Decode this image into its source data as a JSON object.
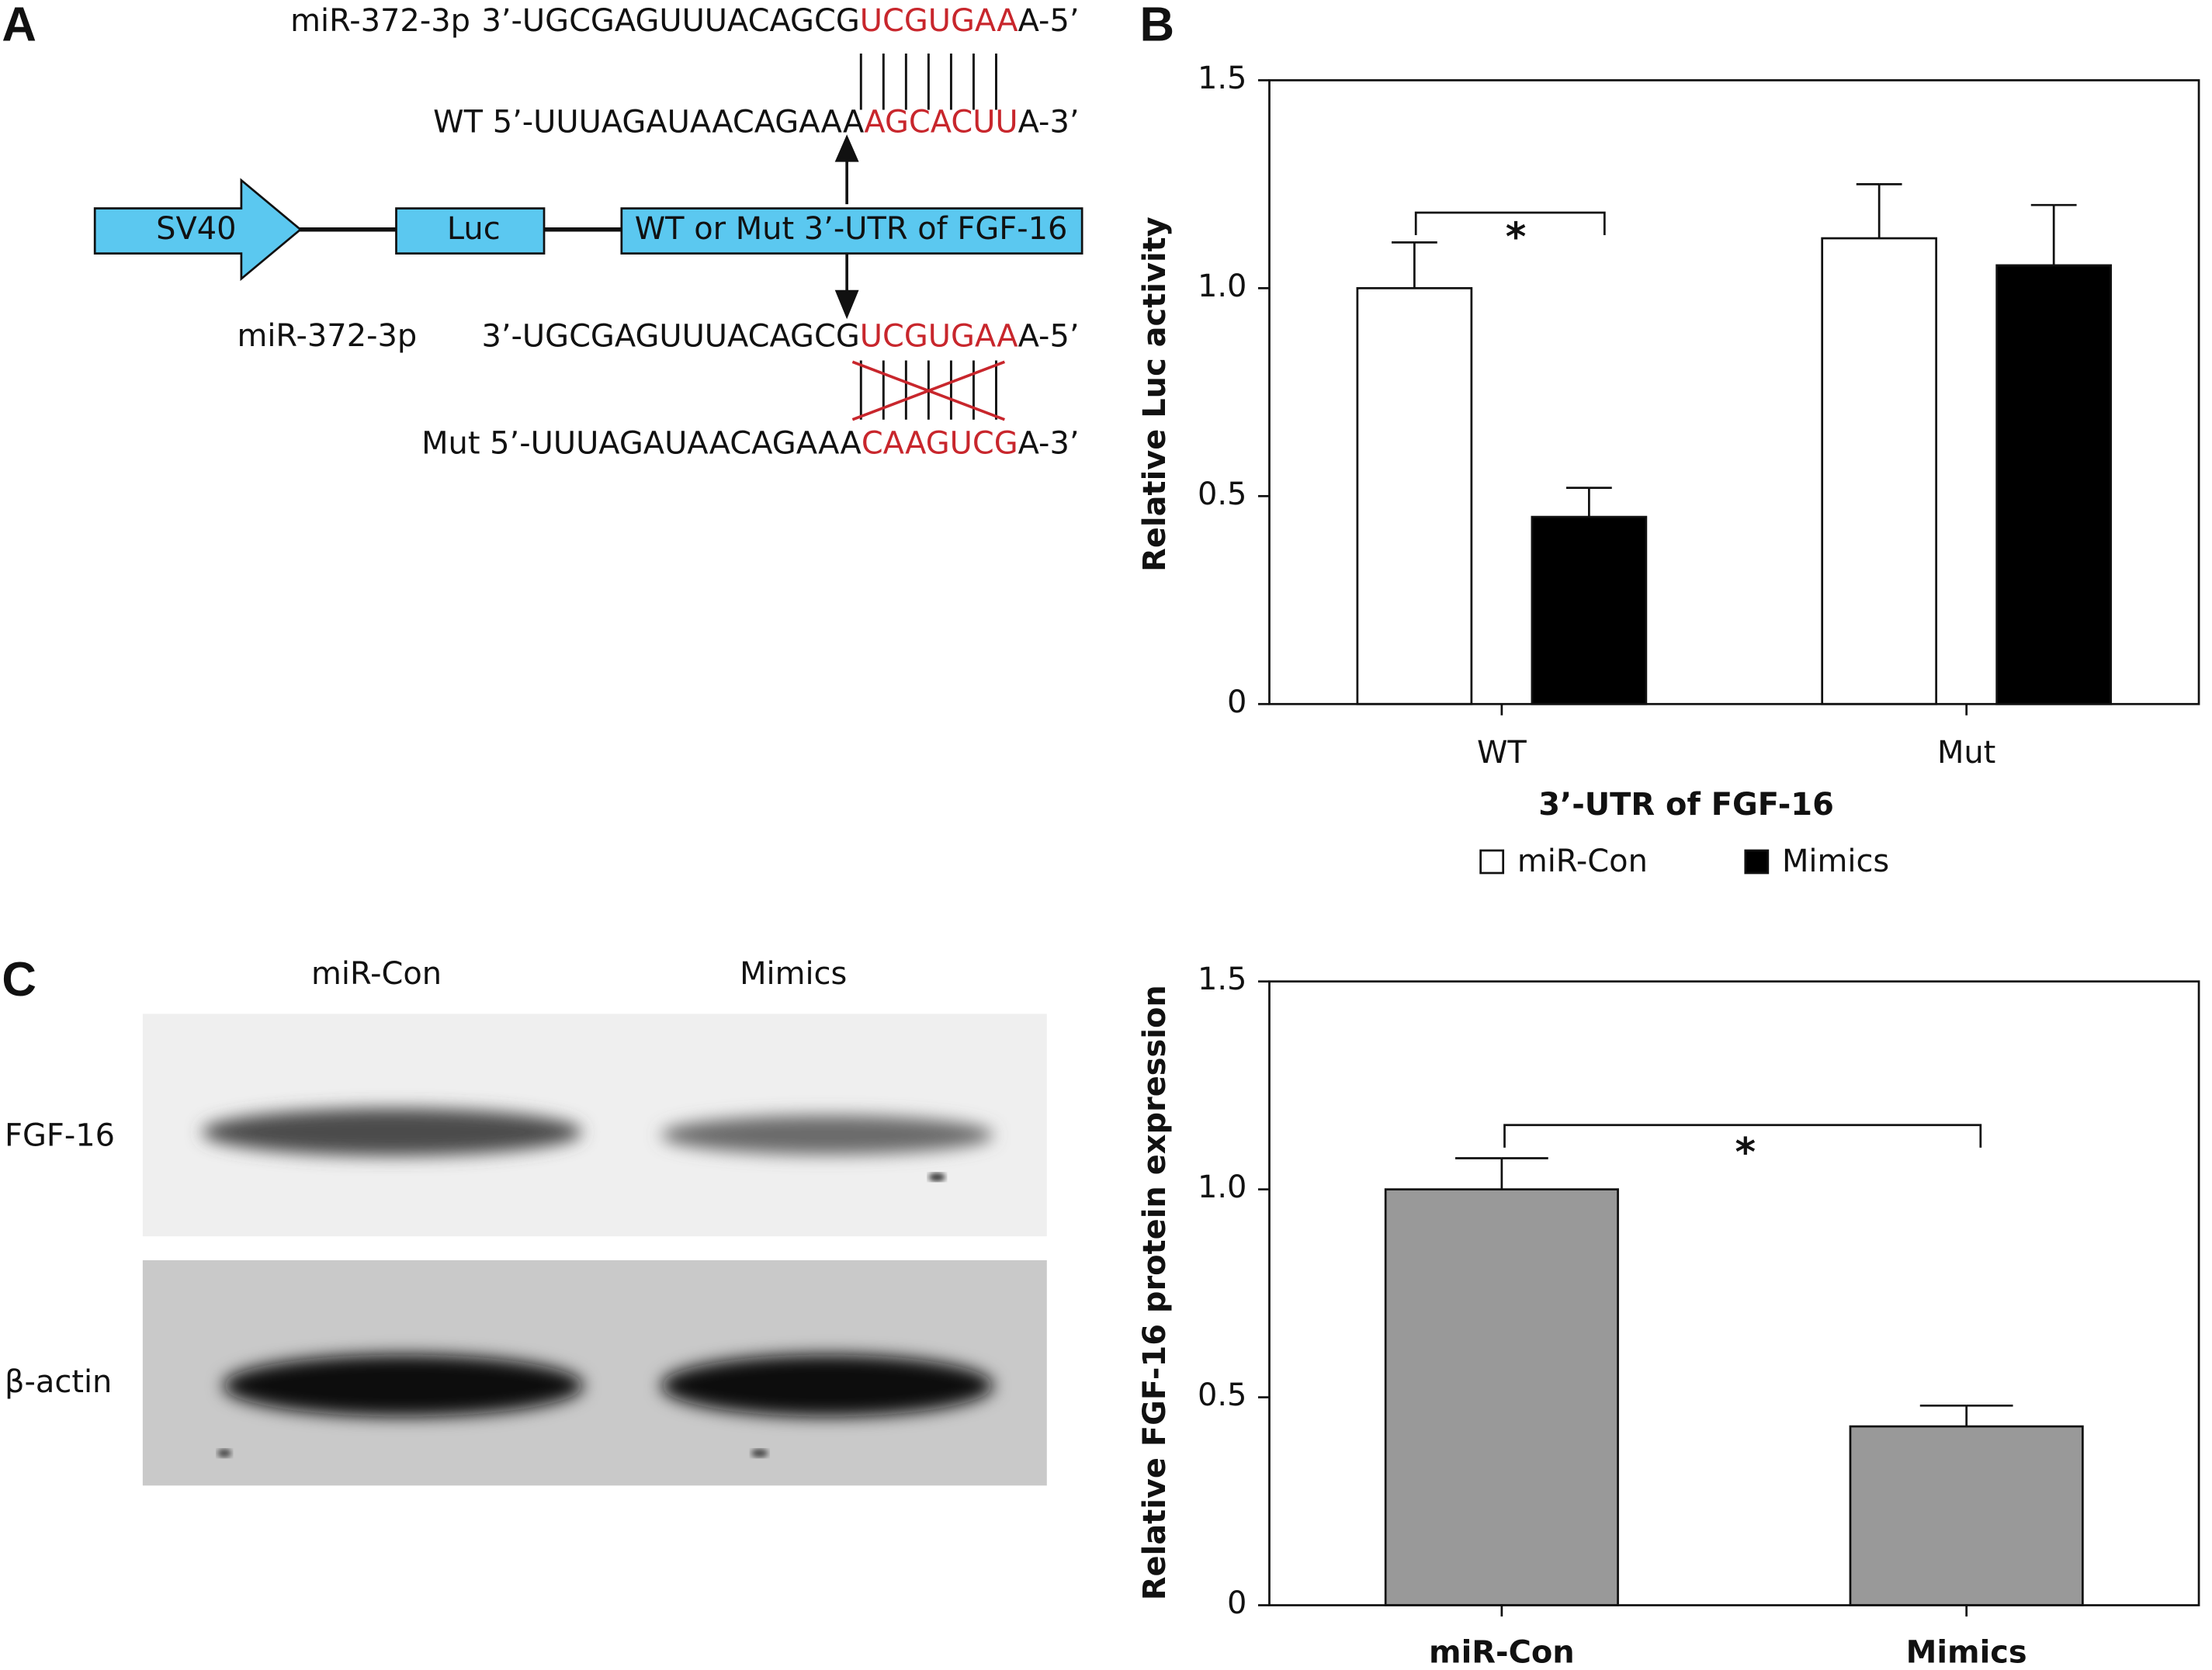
{
  "panels": {
    "a": "A",
    "b": "B",
    "c": "C"
  },
  "diagram": {
    "top_mirna": {
      "label": "miR-372-3p",
      "prefix": "3’-UGCGAGUUUACAGCG",
      "site": "UCGUGAA",
      "suffix": "A-5’"
    },
    "wt_utr": {
      "prefix": "WT 5’-UUUAGAUAACAGAAA",
      "site": "AGCACUU",
      "suffix": "A-3’"
    },
    "construct": {
      "promoter": "SV40",
      "reporter": "Luc",
      "utr": "WT or Mut 3’-UTR of FGF-16"
    },
    "bottom_mirna": {
      "label": "miR-372-3p",
      "prefix": "3’-UGCGAGUUUACAGCG",
      "site": "UCGUGAA",
      "suffix": "A-5’"
    },
    "mut_utr": {
      "prefix": "Mut 5’-UUUAGAUAACAGAAA",
      "site": "CAAGUCG",
      "suffix": "A-3’"
    }
  },
  "blot": {
    "lanes": [
      "miR-Con",
      "Mimics"
    ],
    "rows": [
      "FGF-16",
      "β-actin"
    ]
  },
  "chart_data": [
    {
      "type": "bar",
      "y_label": "Relative Luc activity",
      "x_label": "3’-UTR of FGF-16",
      "categories": [
        "WT",
        "Mut"
      ],
      "series": [
        {
          "name": "miR-Con",
          "color": "#ffffff",
          "values": [
            1.0,
            1.12
          ],
          "errors": [
            0.11,
            0.13
          ]
        },
        {
          "name": "Mimics",
          "color": "#000000",
          "values": [
            0.45,
            1.055
          ],
          "errors": [
            0.07,
            0.145
          ]
        }
      ],
      "ylim": [
        0,
        1.5
      ],
      "yticks": [
        0,
        0.5,
        {
          "value": 1,
          "label": "1.0"
        },
        1.5
      ],
      "annotations": [
        "*"
      ],
      "legend": "bottom"
    },
    {
      "type": "bar",
      "y_label": "Relative FGF-16 protein expression",
      "categories": [
        "miR-Con",
        "Mimics"
      ],
      "values": [
        1.0,
        0.43
      ],
      "errors": [
        0.075,
        0.05
      ],
      "color": "#999999",
      "ylim": [
        0,
        1.5
      ],
      "yticks": [
        0,
        0.5,
        {
          "value": 1,
          "label": "1.0"
        },
        1.5
      ],
      "annotations": [
        "*"
      ]
    }
  ]
}
